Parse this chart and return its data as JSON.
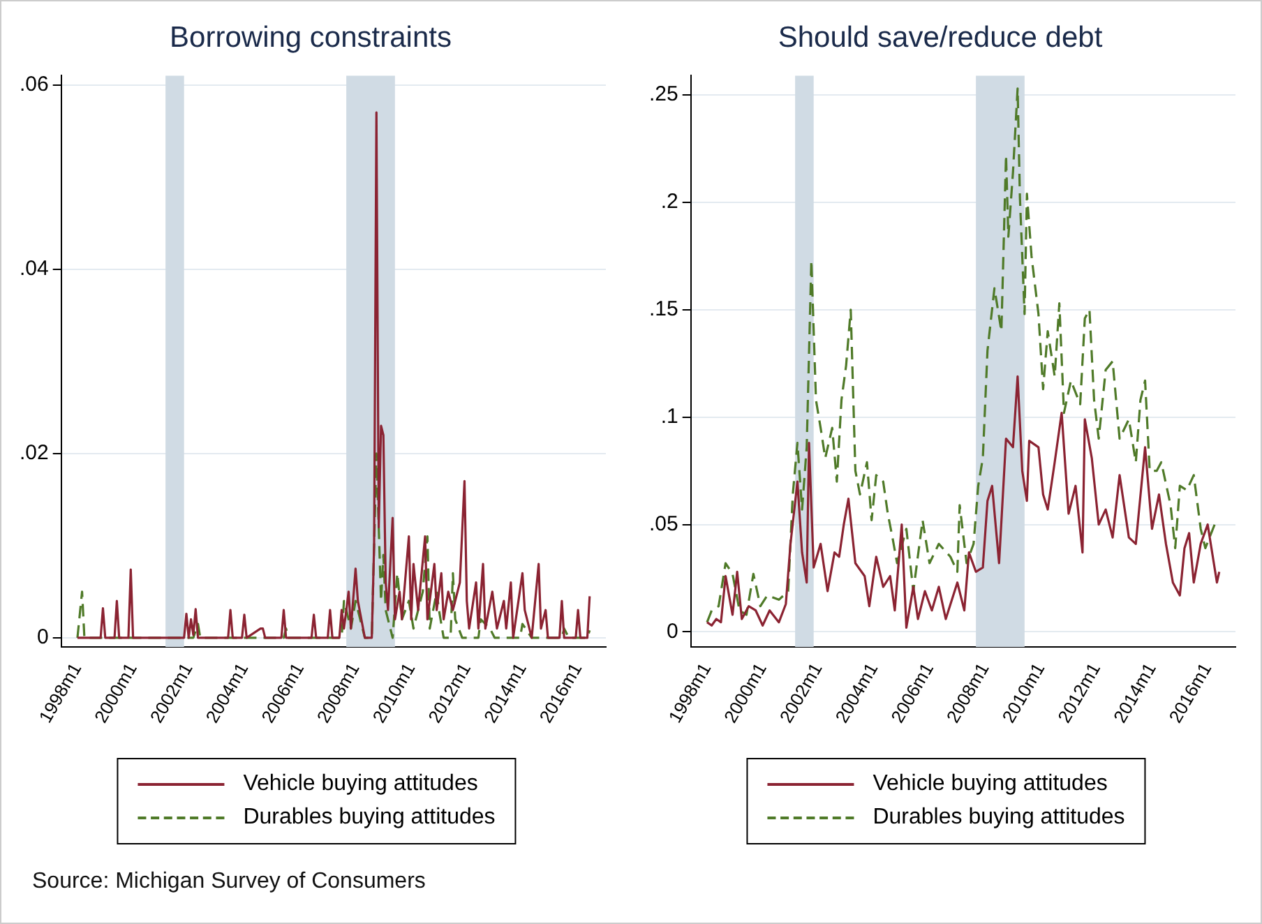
{
  "chart_data": [
    {
      "type": "line",
      "title": "Borrowing constraints",
      "grid": "y",
      "legend": "bottom",
      "marker": "none",
      "xlim": [
        "1997-06",
        "2017-01"
      ],
      "ylim": [
        -0.001,
        0.061
      ],
      "xticks": [
        {
          "value": "1998-01",
          "label": "1998m1"
        },
        {
          "value": "2000-01",
          "label": "2000m1"
        },
        {
          "value": "2002-01",
          "label": "2002m1"
        },
        {
          "value": "2004-01",
          "label": "2004m1"
        },
        {
          "value": "2006-01",
          "label": "2006m1"
        },
        {
          "value": "2008-01",
          "label": "2008m1"
        },
        {
          "value": "2010-01",
          "label": "2010m1"
        },
        {
          "value": "2012-01",
          "label": "2012m1"
        },
        {
          "value": "2014-01",
          "label": "2014m1"
        },
        {
          "value": "2016-01",
          "label": "2016m1"
        }
      ],
      "yticks": [
        {
          "value": 0,
          "label": "0"
        },
        {
          "value": 0.02,
          "label": ".02"
        },
        {
          "value": 0.04,
          "label": ".04"
        },
        {
          "value": 0.06,
          "label": ".06"
        }
      ],
      "bands": [
        {
          "axis": "x",
          "from": "2001-03",
          "to": "2001-11",
          "color": "#d0dbe4"
        },
        {
          "axis": "x",
          "from": "2007-09",
          "to": "2009-06",
          "color": "#d0dbe4"
        }
      ],
      "annotations": [
        "Source: Michigan Survey of Consumers"
      ],
      "series": [
        {
          "name": "Vehicle buying attitudes",
          "color": "#8b2332",
          "line_style": "solid",
          "x": [
            "1998-01",
            "1998-11",
            "1998-12",
            "1999-01",
            "1999-05",
            "1999-06",
            "1999-07",
            "1999-11",
            "1999-12",
            "2000-01",
            "2001-11",
            "2001-12",
            "2002-01",
            "2002-02",
            "2002-03",
            "2002-04",
            "2002-05",
            "2003-06",
            "2003-07",
            "2003-08",
            "2003-12",
            "2004-01",
            "2004-02",
            "2004-08",
            "2004-09",
            "2004-10",
            "2005-05",
            "2005-06",
            "2005-07",
            "2006-06",
            "2006-07",
            "2006-08",
            "2007-01",
            "2007-02",
            "2007-03",
            "2007-06",
            "2007-07",
            "2007-08",
            "2007-10",
            "2007-11",
            "2008-01",
            "2008-02",
            "2008-05",
            "2008-08",
            "2008-09",
            "2008-10",
            "2008-11",
            "2008-12",
            "2009-01",
            "2009-02",
            "2009-03",
            "2009-05",
            "2009-06",
            "2009-08",
            "2009-09",
            "2009-12",
            "2010-01",
            "2010-02",
            "2010-04",
            "2010-07",
            "2010-08",
            "2010-11",
            "2010-12",
            "2011-02",
            "2011-03",
            "2011-05",
            "2011-07",
            "2011-10",
            "2011-12",
            "2012-01",
            "2012-02",
            "2012-05",
            "2012-06",
            "2012-08",
            "2012-09",
            "2012-12",
            "2013-02",
            "2013-05",
            "2013-06",
            "2013-08",
            "2013-09",
            "2014-01",
            "2014-02",
            "2014-05",
            "2014-08",
            "2014-09",
            "2014-11",
            "2014-12",
            "2015-05",
            "2015-06",
            "2015-07",
            "2015-12",
            "2016-01",
            "2016-02",
            "2016-05",
            "2016-06"
          ],
          "values": [
            0,
            0,
            0.0032,
            0,
            0,
            0.004,
            0,
            0,
            0.0074,
            0,
            0,
            0.0026,
            0,
            0.002,
            0.0003,
            0.0031,
            0,
            0,
            0.003,
            0,
            0,
            0.0025,
            0,
            0.001,
            0.001,
            0,
            0,
            0.003,
            0,
            0,
            0.0025,
            0,
            0,
            0.003,
            0,
            0,
            0.003,
            0.001,
            0.005,
            0.001,
            0.0075,
            0.004,
            0,
            0,
            0.01,
            0.057,
            0.012,
            0.023,
            0.022,
            0.006,
            0.003,
            0.013,
            0.002,
            0.005,
            0.002,
            0.011,
            0.002,
            0.008,
            0.003,
            0.011,
            0.002,
            0.008,
            0.003,
            0.007,
            0.002,
            0.005,
            0.003,
            0.006,
            0.017,
            0.004,
            0.001,
            0.006,
            0.001,
            0.008,
            0.001,
            0.005,
            0.001,
            0.004,
            0.001,
            0.006,
            0,
            0.007,
            0.003,
            0,
            0.008,
            0.001,
            0.003,
            0,
            0,
            0.004,
            0,
            0,
            0.003,
            0,
            0,
            0.0045
          ]
        },
        {
          "name": "Durables buying attitudes",
          "color": "#4f7a28",
          "line_style": "dashed",
          "x": [
            "1998-01",
            "1998-02",
            "1998-03",
            "1998-04",
            "2002-03",
            "2002-05",
            "2002-06",
            "2005-06",
            "2005-07",
            "2005-08",
            "2007-07",
            "2007-08",
            "2007-11",
            "2008-01",
            "2008-05",
            "2008-08",
            "2008-10",
            "2008-11",
            "2008-12",
            "2009-01",
            "2009-02",
            "2009-05",
            "2009-07",
            "2009-09",
            "2009-12",
            "2010-02",
            "2010-06",
            "2010-08",
            "2010-09",
            "2010-12",
            "2011-01",
            "2011-03",
            "2011-06",
            "2011-07",
            "2011-08",
            "2011-11",
            "2012-06",
            "2012-07",
            "2012-11",
            "2013-01",
            "2013-12",
            "2014-01",
            "2014-05",
            "2015-06",
            "2015-07",
            "2015-09",
            "2016-05",
            "2016-06"
          ],
          "values": [
            0,
            0.0025,
            0.005,
            0,
            0,
            0.0015,
            0,
            0,
            0.001,
            0,
            0,
            0.004,
            0.001,
            0.004,
            0,
            0,
            0.02,
            0.012,
            0.004,
            0.009,
            0.003,
            0,
            0.007,
            0.002,
            0.004,
            0.001,
            0.005,
            0.011,
            0.001,
            0.005,
            0.003,
            0,
            0,
            0.007,
            0.002,
            0,
            0,
            0.002,
            0.001,
            0,
            0,
            0.0015,
            0,
            0,
            0.001,
            0,
            0,
            0.0008
          ]
        }
      ]
    },
    {
      "type": "line",
      "title": "Should save/reduce debt",
      "grid": "y",
      "legend": "bottom",
      "marker": "none",
      "xlim": [
        "1997-06",
        "2017-01"
      ],
      "ylim": [
        -0.007,
        0.259
      ],
      "xticks": [
        {
          "value": "1998-01",
          "label": "1998m1"
        },
        {
          "value": "2000-01",
          "label": "2000m1"
        },
        {
          "value": "2002-01",
          "label": "2002m1"
        },
        {
          "value": "2004-01",
          "label": "2004m1"
        },
        {
          "value": "2006-01",
          "label": "2006m1"
        },
        {
          "value": "2008-01",
          "label": "2008m1"
        },
        {
          "value": "2010-01",
          "label": "2010m1"
        },
        {
          "value": "2012-01",
          "label": "2012m1"
        },
        {
          "value": "2014-01",
          "label": "2014m1"
        },
        {
          "value": "2016-01",
          "label": "2016m1"
        }
      ],
      "yticks": [
        {
          "value": 0,
          "label": "0"
        },
        {
          "value": 0.05,
          "label": ".05"
        },
        {
          "value": 0.1,
          "label": ".1"
        },
        {
          "value": 0.15,
          "label": ".15"
        },
        {
          "value": 0.2,
          "label": ".2"
        },
        {
          "value": 0.25,
          "label": ".25"
        }
      ],
      "bands": [
        {
          "axis": "x",
          "from": "2001-03",
          "to": "2001-11",
          "color": "#d0dbe4"
        },
        {
          "axis": "x",
          "from": "2007-09",
          "to": "2009-06",
          "color": "#d0dbe4"
        }
      ],
      "series": [
        {
          "name": "Vehicle buying attitudes",
          "color": "#8b2332",
          "line_style": "solid",
          "x": [
            "1998-01",
            "1998-03",
            "1998-05",
            "1998-07",
            "1998-09",
            "1998-12",
            "1999-02",
            "1999-04",
            "1999-07",
            "1999-10",
            "2000-01",
            "2000-04",
            "2000-08",
            "2000-11",
            "2001-01",
            "2001-04",
            "2001-06",
            "2001-08",
            "2001-09",
            "2001-11",
            "2002-02",
            "2002-05",
            "2002-08",
            "2002-10",
            "2002-12",
            "2003-02",
            "2003-05",
            "2003-09",
            "2003-11",
            "2004-02",
            "2004-05",
            "2004-08",
            "2004-10",
            "2005-01",
            "2005-03",
            "2005-06",
            "2005-08",
            "2005-11",
            "2006-02",
            "2006-05",
            "2006-08",
            "2007-01",
            "2007-04",
            "2007-06",
            "2007-09",
            "2007-12",
            "2008-02",
            "2008-04",
            "2008-07",
            "2008-10",
            "2009-01",
            "2009-03",
            "2009-05",
            "2009-07",
            "2009-08",
            "2009-12",
            "2010-02",
            "2010-04",
            "2010-07",
            "2010-10",
            "2011-01",
            "2011-04",
            "2011-07",
            "2011-08",
            "2011-11",
            "2012-02",
            "2012-05",
            "2012-08",
            "2012-11",
            "2013-03",
            "2013-06",
            "2013-10",
            "2014-01",
            "2014-04",
            "2014-07",
            "2014-10",
            "2015-01",
            "2015-03",
            "2015-05",
            "2015-07",
            "2015-10",
            "2016-01",
            "2016-05",
            "2016-06"
          ],
          "values": [
            0.0045,
            0.003,
            0.006,
            0.0045,
            0.026,
            0.008,
            0.028,
            0.006,
            0.012,
            0.01,
            0.003,
            0.01,
            0.0045,
            0.013,
            0.041,
            0.07,
            0.037,
            0.023,
            0.088,
            0.03,
            0.041,
            0.019,
            0.037,
            0.035,
            0.05,
            0.062,
            0.032,
            0.026,
            0.012,
            0.035,
            0.021,
            0.026,
            0.01,
            0.05,
            0.002,
            0.021,
            0.006,
            0.019,
            0.01,
            0.021,
            0.006,
            0.023,
            0.01,
            0.037,
            0.028,
            0.03,
            0.061,
            0.068,
            0.032,
            0.09,
            0.086,
            0.119,
            0.075,
            0.061,
            0.089,
            0.086,
            0.064,
            0.057,
            0.079,
            0.102,
            0.055,
            0.068,
            0.037,
            0.099,
            0.081,
            0.05,
            0.057,
            0.044,
            0.073,
            0.044,
            0.041,
            0.086,
            0.048,
            0.064,
            0.041,
            0.023,
            0.017,
            0.039,
            0.046,
            0.023,
            0.041,
            0.05,
            0.023,
            0.028
          ]
        },
        {
          "name": "Durables buying attitudes",
          "color": "#4f7a28",
          "line_style": "dashed",
          "x": [
            "1998-01",
            "1998-03",
            "1998-06",
            "1998-09",
            "1998-12",
            "1999-03",
            "1999-06",
            "1999-09",
            "1999-12",
            "2000-03",
            "2000-08",
            "2000-12",
            "2001-02",
            "2001-04",
            "2001-06",
            "2001-08",
            "2001-10",
            "2001-12",
            "2002-02",
            "2002-04",
            "2002-07",
            "2002-09",
            "2002-11",
            "2003-01",
            "2003-03",
            "2003-05",
            "2003-07",
            "2003-10",
            "2003-12",
            "2004-02",
            "2004-05",
            "2004-07",
            "2004-09",
            "2004-11",
            "2005-03",
            "2005-06",
            "2005-10",
            "2006-01",
            "2006-05",
            "2006-10",
            "2007-01",
            "2007-02",
            "2007-05",
            "2007-08",
            "2007-10",
            "2007-12",
            "2008-02",
            "2008-05",
            "2008-08",
            "2008-10",
            "2008-11",
            "2009-01",
            "2009-03",
            "2009-04",
            "2009-06",
            "2009-07",
            "2009-09",
            "2009-12",
            "2010-02",
            "2010-04",
            "2010-07",
            "2010-09",
            "2010-11",
            "2011-02",
            "2011-06",
            "2011-08",
            "2011-10",
            "2011-12",
            "2012-02",
            "2012-05",
            "2012-08",
            "2012-11",
            "2013-03",
            "2013-06",
            "2013-08",
            "2013-10",
            "2013-12",
            "2014-03",
            "2014-05",
            "2014-09",
            "2014-11",
            "2015-01",
            "2015-04",
            "2015-07",
            "2015-10",
            "2015-12",
            "2016-04",
            "2016-06"
          ],
          "values": [
            0.0045,
            0.01,
            0.012,
            0.032,
            0.027,
            0.01,
            0.008,
            0.027,
            0.012,
            0.017,
            0.015,
            0.019,
            0.064,
            0.088,
            0.057,
            0.086,
            0.173,
            0.108,
            0.095,
            0.081,
            0.095,
            0.07,
            0.108,
            0.124,
            0.15,
            0.075,
            0.064,
            0.079,
            0.052,
            0.073,
            0.07,
            0.055,
            0.044,
            0.032,
            0.048,
            0.019,
            0.052,
            0.032,
            0.041,
            0.035,
            0.028,
            0.059,
            0.032,
            0.041,
            0.068,
            0.081,
            0.131,
            0.16,
            0.14,
            0.222,
            0.184,
            0.214,
            0.253,
            0.202,
            0.148,
            0.204,
            0.175,
            0.148,
            0.113,
            0.14,
            0.119,
            0.153,
            0.102,
            0.117,
            0.106,
            0.146,
            0.15,
            0.108,
            0.09,
            0.122,
            0.126,
            0.09,
            0.099,
            0.079,
            0.108,
            0.117,
            0.075,
            0.075,
            0.079,
            0.059,
            0.039,
            0.068,
            0.066,
            0.073,
            0.048,
            0.039,
            0.05,
            0.05
          ]
        }
      ]
    }
  ]
}
